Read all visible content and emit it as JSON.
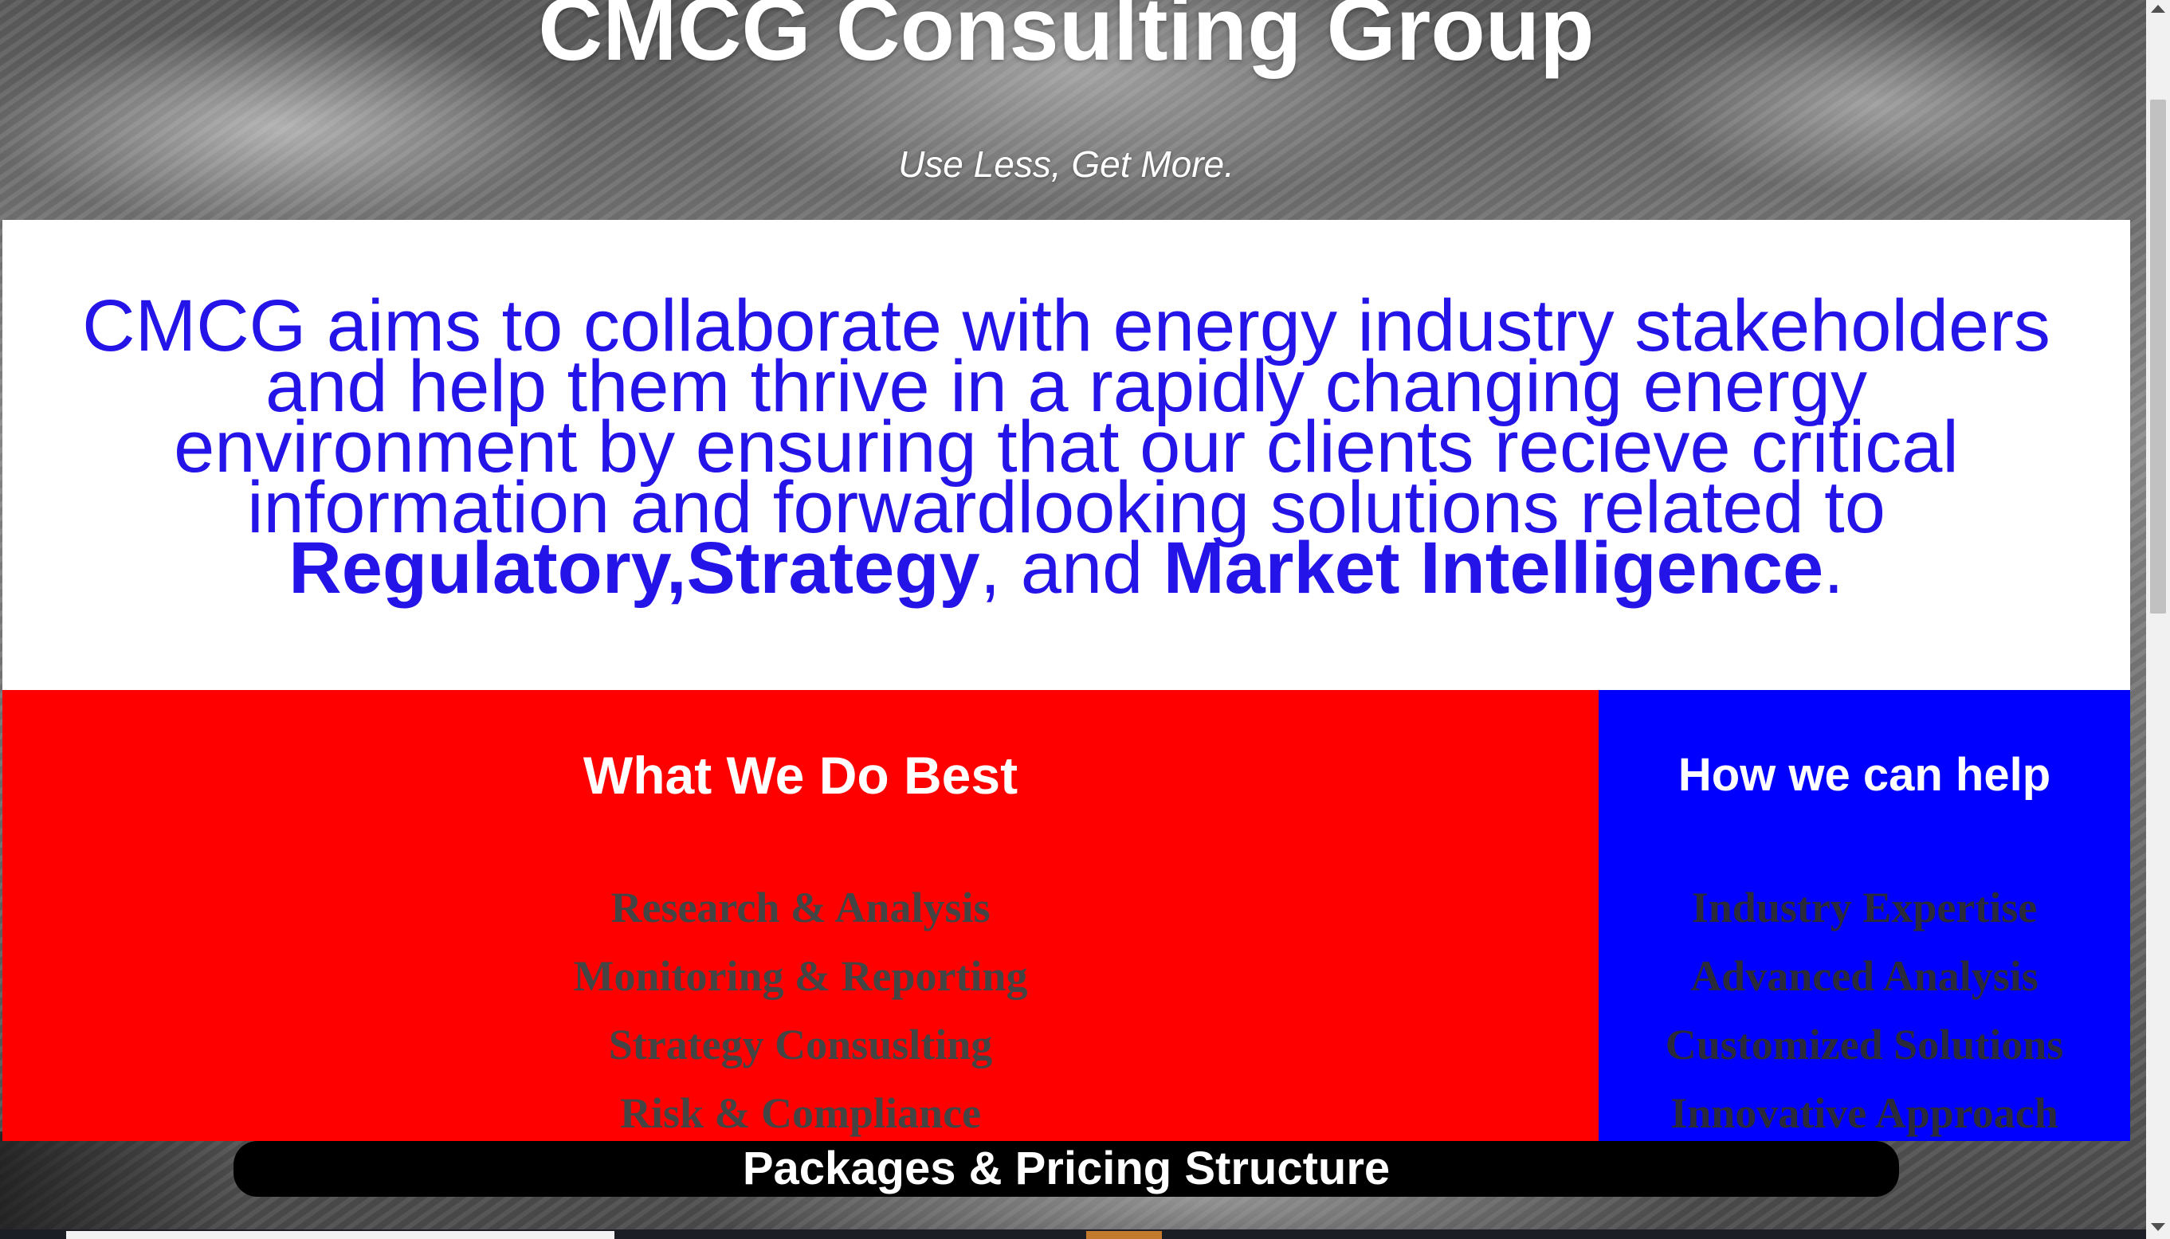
{
  "hero": {
    "title": "CMCG Consulting Group",
    "tagline": "Use Less, Get More."
  },
  "mission": {
    "text_part1": "CMCG aims to collaborate with energy industry stakeholders and help them thrive in a rapidly changing energy environment by ensuring that our clients recieve critical information and forwardlooking solutions related to ",
    "bold_regulatory": "Regulatory",
    "comma1": ",",
    "bold_strategy": "Strategy",
    "text_and": ", and ",
    "bold_market": "Market Intelligence",
    "period": "."
  },
  "what_we_do": {
    "title": "What We Do Best",
    "items": [
      "Research & Analysis",
      "Monitoring & Reporting",
      "Strategy Consuslting",
      "Risk & Compliance"
    ]
  },
  "how_we_help": {
    "title": "How we can help",
    "items": [
      "Industry Expertise",
      "Advanced Analysis",
      "Customized Solutions",
      "Innovative Approach"
    ]
  },
  "pricing": {
    "label": "Packages & Pricing Structure"
  },
  "colors": {
    "mission_text": "#2414e8",
    "red_panel": "#ff0000",
    "blue_panel": "#0000ff",
    "pricing_bar": "#000000"
  }
}
